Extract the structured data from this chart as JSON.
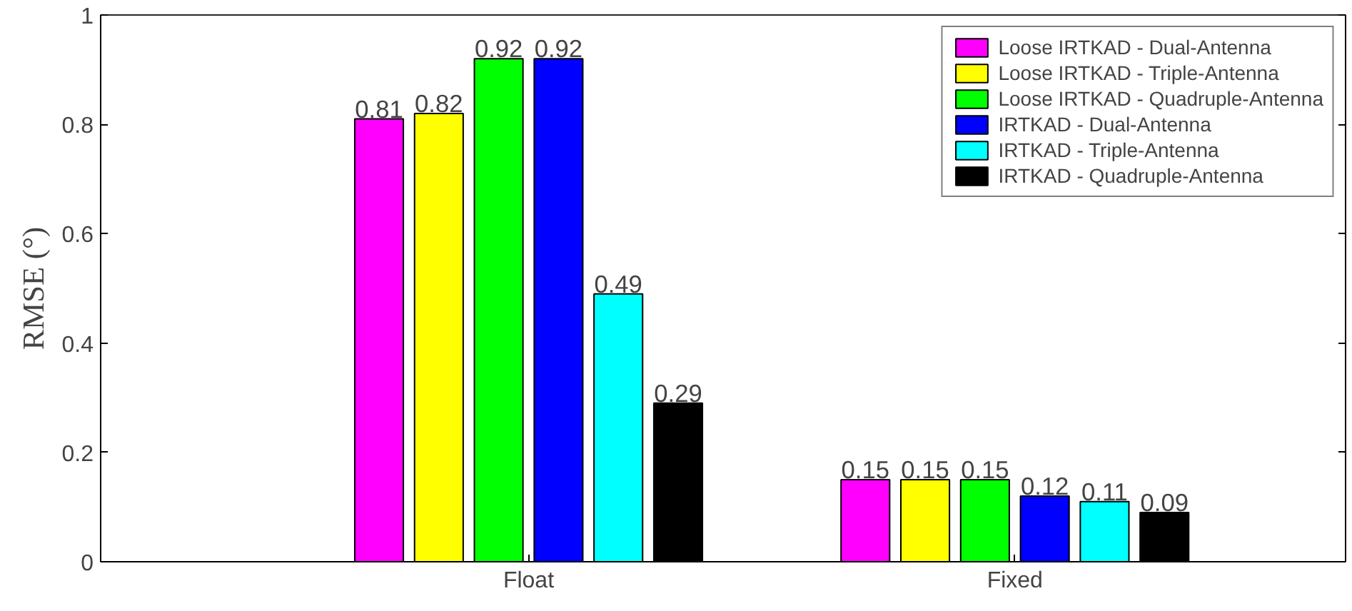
{
  "chart_data": {
    "type": "bar",
    "ylabel": "RMSE (°)",
    "categories": [
      "Float",
      "Fixed"
    ],
    "series": [
      {
        "name": "Loose IRTKAD - Dual-Antenna",
        "color": "#ff00ff",
        "values": [
          0.81,
          0.15
        ]
      },
      {
        "name": "Loose IRTKAD - Triple-Antenna",
        "color": "#ffff00",
        "values": [
          0.82,
          0.15
        ]
      },
      {
        "name": "Loose IRTKAD - Quadruple-Antenna",
        "color": "#00ff00",
        "values": [
          0.92,
          0.15
        ]
      },
      {
        "name": "IRTKAD - Dual-Antenna",
        "color": "#0000ff",
        "values": [
          0.92,
          0.12
        ]
      },
      {
        "name": "IRTKAD - Triple-Antenna",
        "color": "#00ffff",
        "values": [
          0.49,
          0.11
        ]
      },
      {
        "name": "IRTKAD - Quadruple-Antenna",
        "color": "#000000",
        "values": [
          0.29,
          0.09
        ]
      }
    ],
    "ylim": [
      0,
      1
    ],
    "yticks": [
      0,
      0.2,
      0.4,
      0.6,
      0.8,
      1
    ],
    "data_labels": true,
    "legend": "top right",
    "grid": false
  }
}
